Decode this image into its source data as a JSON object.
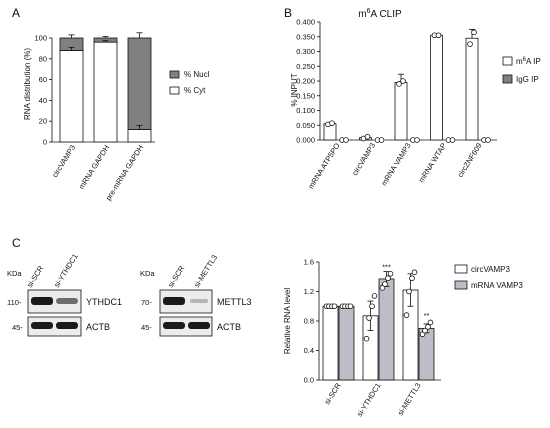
{
  "panels": {
    "A": "A",
    "B": "B",
    "C": "C"
  },
  "colors": {
    "dark_gray": "#808080",
    "light_gray": "#bdbdc8",
    "white": "#ffffff",
    "black": "#111111"
  },
  "chart_data": [
    {
      "id": "A",
      "type": "bar",
      "stacked": true,
      "categories": [
        "circVAMP3",
        "mRNA GAPDH",
        "pre-mRNA GAPDH"
      ],
      "series": [
        {
          "name": "% Cyt",
          "values": [
            88,
            96,
            12
          ],
          "errors": [
            3,
            1.5,
            4
          ],
          "color": "#ffffff"
        },
        {
          "name": "% Nucl",
          "values": [
            12,
            4,
            88
          ],
          "errors": [
            3,
            1.5,
            5
          ],
          "color": "#808080"
        }
      ],
      "ylabel": "RNA distribution (%)",
      "ylim": [
        0,
        100
      ],
      "yticks": [
        0,
        20,
        40,
        60,
        80,
        100
      ],
      "legend_position": "right"
    },
    {
      "id": "B",
      "type": "bar",
      "title_prefix": "m",
      "title_sup": "6",
      "title_suffix": "A CLIP",
      "categories": [
        "mRNA ATP5PO",
        "circVAMP3",
        "mRNA VAMP3",
        "mRNA WTAP",
        "circZNF609"
      ],
      "series": [
        {
          "name_prefix": "m",
          "name_sup": "6",
          "name_suffix": "A IP",
          "values": [
            0.055,
            0.008,
            0.195,
            0.355,
            0.345
          ],
          "errors": [
            0.005,
            0.004,
            0.028,
            0.003,
            0.03
          ],
          "points": [
            [
              0.053,
              0.057
            ],
            [
              0.005,
              0.011
            ],
            [
              0.19,
              0.2
            ],
            [
              0.355,
              0.355
            ],
            [
              0.325,
              0.365
            ]
          ],
          "color": "#ffffff"
        },
        {
          "name": "IgG IP",
          "values": [
            0.0,
            0.0,
            0.0,
            0.0,
            0.0
          ],
          "points": [
            [
              0.0,
              0.0
            ],
            [
              0.0,
              0.0
            ],
            [
              0.0,
              0.0
            ],
            [
              0.0,
              0.0
            ],
            [
              0.0,
              0.0
            ]
          ],
          "color": "#808080"
        }
      ],
      "ylabel": "% INPUT",
      "ylim": [
        0,
        0.4
      ],
      "yticks": [
        "0.000",
        "0.050",
        "0.100",
        "0.150",
        "0.200",
        "0.250",
        "0.300",
        "0.350",
        "0.400"
      ],
      "legend_position": "right"
    },
    {
      "id": "C-bar",
      "type": "bar",
      "categories": [
        "si-SCR",
        "si-YTHDC1",
        "si-METTL3"
      ],
      "series": [
        {
          "name": "circVAMP3",
          "values": [
            1.0,
            0.87,
            1.22
          ],
          "errors": [
            0.01,
            0.2,
            0.22
          ],
          "points": [
            [
              1.0,
              1.0,
              1.0,
              1.0
            ],
            [
              0.56,
              0.84,
              1.0,
              1.14
            ],
            [
              0.88,
              1.2,
              1.38,
              1.46
            ]
          ],
          "color": "#ffffff"
        },
        {
          "name": "mRNA VAMP3",
          "values": [
            1.0,
            1.37,
            0.7
          ],
          "errors": [
            0.01,
            0.1,
            0.06
          ],
          "points": [
            [
              1.0,
              1.0,
              1.0,
              1.0
            ],
            [
              1.25,
              1.3,
              1.38,
              1.44
            ],
            [
              0.62,
              0.67,
              0.72,
              0.78
            ]
          ],
          "color": "#bdbdc8"
        }
      ],
      "annotations": [
        "***",
        "**"
      ],
      "ylabel": "Relative RNA level",
      "ylim": [
        0,
        1.6
      ],
      "yticks": [
        "0.0",
        "0.4",
        "0.8",
        "1.2",
        "1.6"
      ],
      "legend_position": "top-right"
    }
  ],
  "blots": {
    "left": {
      "kda": "KDa",
      "lanes": [
        "si-SCR",
        "si-YTHDC1"
      ],
      "markers": [
        "110-",
        "45-"
      ],
      "proteins": [
        "YTHDC1",
        "ACTB"
      ]
    },
    "right": {
      "kda": "KDa",
      "lanes": [
        "si-SCR",
        "si-METTL3"
      ],
      "markers": [
        "70-",
        "45-"
      ],
      "proteins": [
        "METTL3",
        "ACTB"
      ]
    }
  }
}
